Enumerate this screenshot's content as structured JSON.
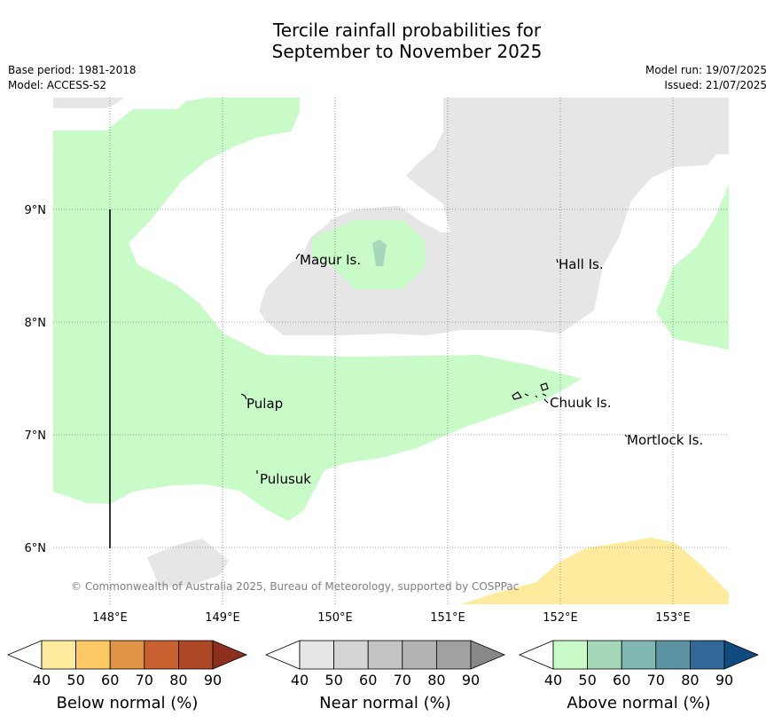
{
  "title_line1": "Tercile rainfall probabilities for",
  "title_line2": "September to November 2025",
  "base_period": "Base period: 1981-2018",
  "model": "Model: ACCESS-S2",
  "model_run": "Model run: 19/07/2025",
  "issued": "Issued: 21/07/2025",
  "copyright": "© Commonwealth of Australia 2025, Bureau of Meteorology, supported by COSPPac",
  "axes": {
    "lat_labels": [
      "9°N",
      "8°N",
      "7°N",
      "6°N"
    ],
    "lon_labels": [
      "148°E",
      "149°E",
      "150°E",
      "151°E",
      "152°E",
      "153°E"
    ]
  },
  "places": [
    {
      "name": "Magur Is."
    },
    {
      "name": "Hall Is."
    },
    {
      "name": "Pulap"
    },
    {
      "name": "Chuuk Is."
    },
    {
      "name": "Mortlock Is."
    },
    {
      "name": "Pulusuk"
    }
  ],
  "colorbars": [
    {
      "label": "Below normal (%)",
      "ticks": [
        "40",
        "50",
        "60",
        "70",
        "80",
        "90"
      ],
      "colors": [
        "#ffffff",
        "#feeb9e",
        "#fdc965",
        "#e09446",
        "#c9602f",
        "#ad4826",
        "#8c2f1f"
      ]
    },
    {
      "label": "Near normal (%)",
      "ticks": [
        "40",
        "50",
        "60",
        "70",
        "80",
        "90"
      ],
      "colors": [
        "#ffffff",
        "#e6e6e6",
        "#d5d5d5",
        "#c4c4c4",
        "#b3b3b3",
        "#a1a1a1",
        "#888888"
      ]
    },
    {
      "label": "Above normal (%)",
      "ticks": [
        "40",
        "50",
        "60",
        "70",
        "80",
        "90"
      ],
      "colors": [
        "#ffffff",
        "#c8fbc8",
        "#a5d8b9",
        "#80b7b2",
        "#5c93a2",
        "#326898",
        "#0f4a80"
      ]
    }
  ],
  "colors": {
    "above_40": "#c8fbc8",
    "above_50": "#a5d8b9",
    "near_40": "#e6e6e6",
    "below_40": "#feeb9e"
  }
}
